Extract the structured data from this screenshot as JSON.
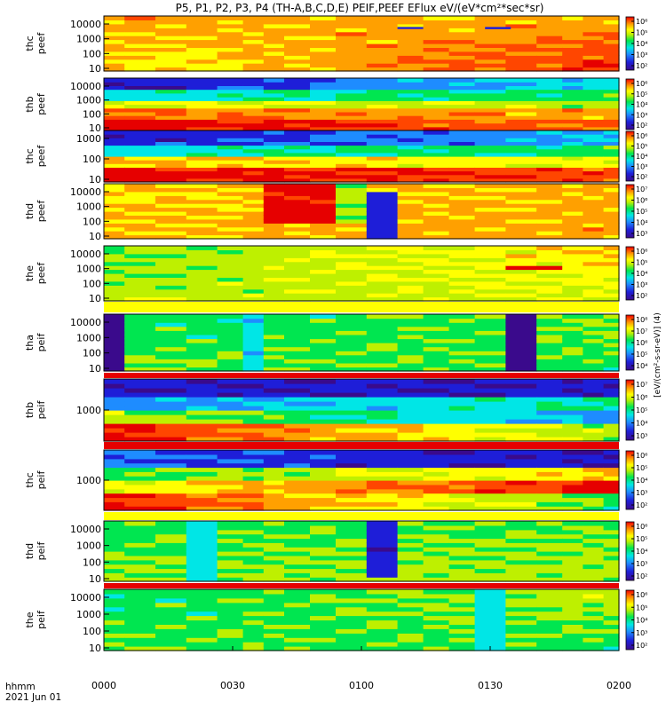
{
  "title": "P5, P1, P2, P3, P4 (TH-A,B,C,D,E) PEIF,PEEF EFlux eV/(eV*cm²*sec*sr)",
  "x_axis": {
    "corner_label_1": "hhmm",
    "corner_label_2": "2021 Jun 01",
    "ticks": [
      "0000",
      "0030",
      "0100",
      "0130",
      "0200"
    ]
  },
  "colorbar_units": "[eV/(cm²-s-sr-eV)] (4)",
  "chart_data": {
    "type": "heatmap",
    "x_range_hours": [
      0,
      2
    ],
    "panels": [
      {
        "label": [
          "thc",
          "peef"
        ],
        "yticks": [
          "10",
          "100",
          "1000",
          "10000"
        ],
        "cbar_ticks": [
          "10⁶",
          "10⁵",
          "10⁴",
          "10³",
          "10²"
        ]
      },
      {
        "label": [
          "thb",
          "peef"
        ],
        "yticks": [
          "10",
          "100",
          "1000",
          "10000"
        ],
        "cbar_ticks": [
          "10⁶",
          "10⁵",
          "10⁴",
          "10³",
          "10²"
        ]
      },
      {
        "label": [
          "thc",
          "peef"
        ],
        "yticks": [
          "10",
          "100",
          "1000"
        ],
        "cbar_ticks": [
          "10⁶",
          "10⁵",
          "10⁴",
          "10³",
          "10²"
        ]
      },
      {
        "label": [
          "thd",
          "peef"
        ],
        "yticks": [
          "10",
          "100",
          "1000",
          "10000"
        ],
        "cbar_ticks": [
          "10⁷",
          "10⁶",
          "10⁵",
          "10⁴",
          "10³"
        ]
      },
      {
        "label": [
          "the",
          "peef"
        ],
        "yticks": [
          "10",
          "100",
          "1000",
          "10000"
        ],
        "cbar_ticks": [
          "10⁶",
          "10⁵",
          "10⁴",
          "10³",
          "10²"
        ]
      },
      {
        "label": [
          "tha",
          "peif"
        ],
        "yticks": [
          "10",
          "100",
          "1000",
          "10000"
        ],
        "cbar_ticks": [
          "10⁸",
          "10⁷",
          "10⁶",
          "10⁵",
          "10⁴"
        ]
      },
      {
        "label": [
          "thb",
          "peif"
        ],
        "yticks": [
          "1000"
        ],
        "cbar_ticks": [
          "10⁷",
          "10⁶",
          "10⁵",
          "10⁴",
          "10³"
        ]
      },
      {
        "label": [
          "thc",
          "peif"
        ],
        "yticks": [
          "1000"
        ],
        "cbar_ticks": [
          "10⁶",
          "10⁵",
          "10⁴",
          "10³",
          "10²"
        ]
      },
      {
        "label": [
          "thd",
          "peif"
        ],
        "yticks": [
          "10",
          "100",
          "1000",
          "10000"
        ],
        "cbar_ticks": [
          "10⁶",
          "10⁵",
          "10⁴",
          "10³",
          "10²"
        ]
      },
      {
        "label": [
          "the",
          "peif"
        ],
        "yticks": [
          "10",
          "100",
          "1000",
          "10000"
        ],
        "cbar_ticks": [
          "10⁶",
          "10⁵",
          "10⁴",
          "10³",
          "10²"
        ]
      }
    ],
    "colormap": [
      "#3a0a8c",
      "#1e1ed8",
      "#1e8cff",
      "#00e6e6",
      "#00e650",
      "#bef000",
      "#ffff00",
      "#ffa000",
      "#ff4600",
      "#e60000"
    ]
  }
}
